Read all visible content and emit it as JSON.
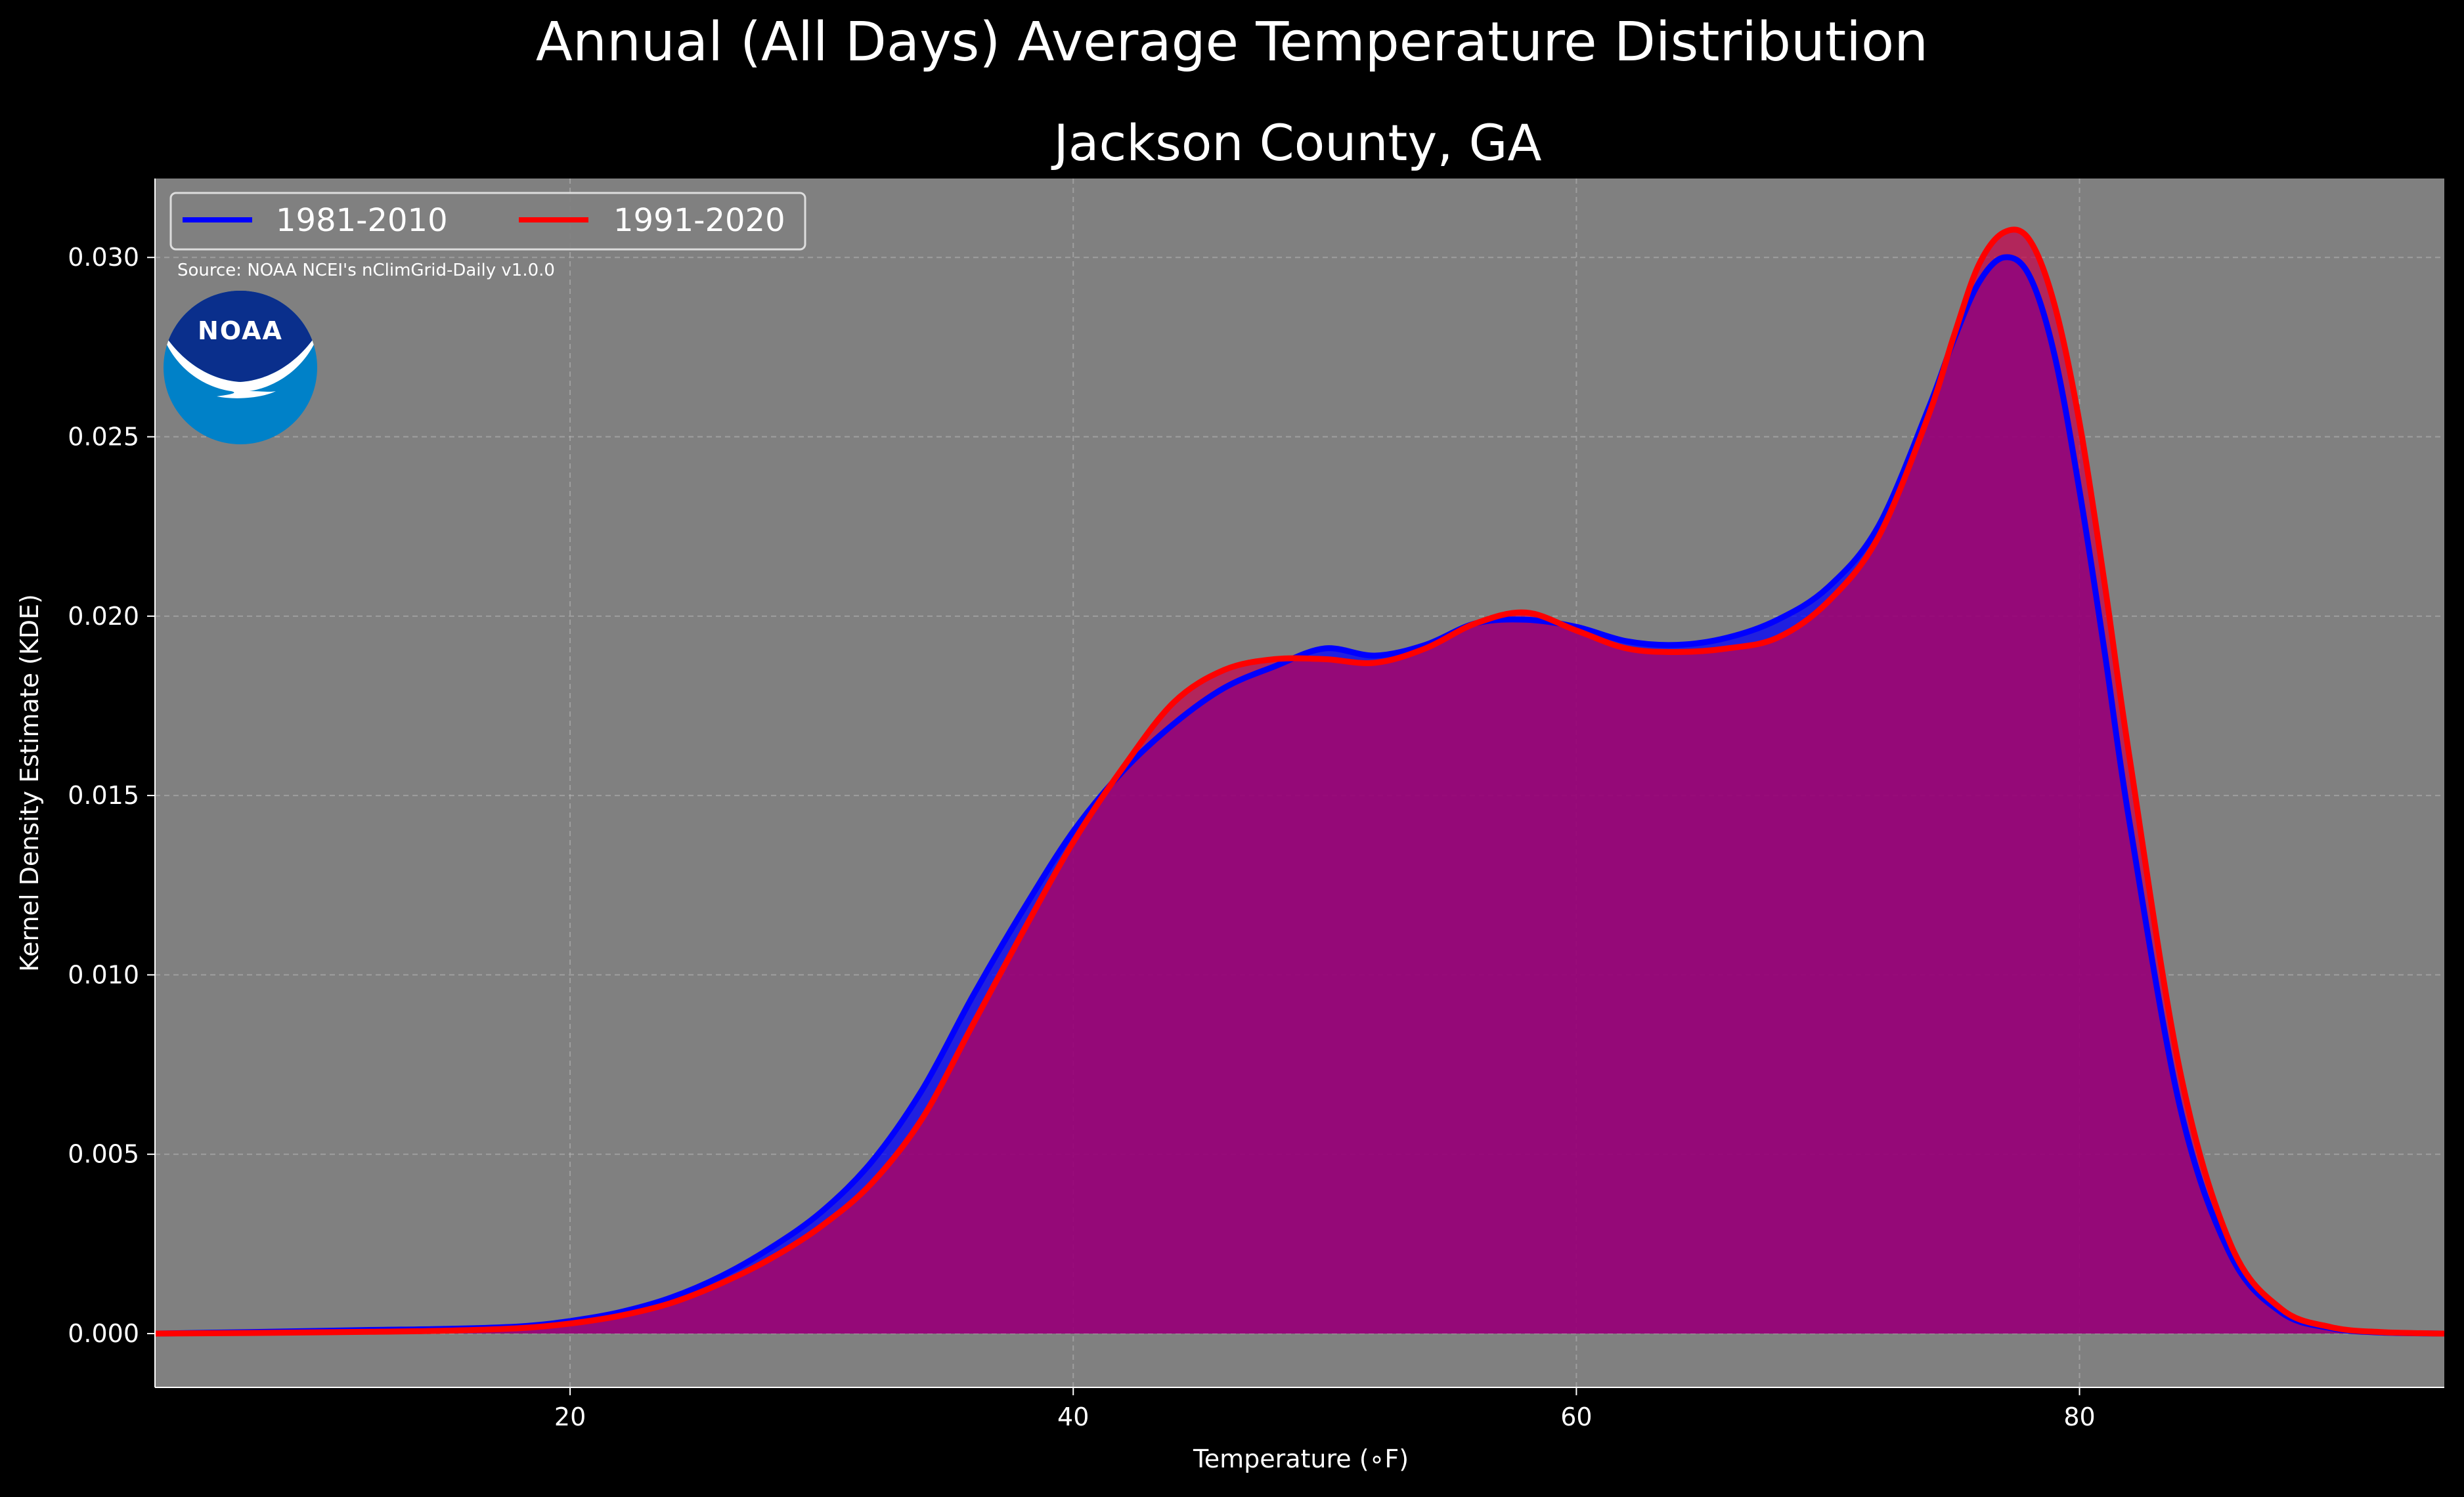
{
  "colors": {
    "background": "#000000",
    "plot_bg": "#808080",
    "series_1981": "#0000ff",
    "series_1991": "#ff0000",
    "fill_1981": "#0000ff",
    "fill_1991": "#c8004b",
    "noaa_dark": "#0a2f8c",
    "noaa_light": "#0081c8"
  },
  "source_note": "Source: NOAA NCEI's nClimGrid-Daily v1.0.0",
  "logo_text": "NOAA",
  "chart_data": {
    "type": "area",
    "title": "Annual (All Days) Average Temperature Distribution",
    "subtitle": "Jackson County, GA",
    "xlabel": "Temperature (∘F)",
    "ylabel": "Kernel Density Estimate (KDE)",
    "xlim": [
      3.5,
      94.5
    ],
    "ylim": [
      -0.0015,
      0.0322
    ],
    "xticks": [
      20,
      40,
      60,
      80
    ],
    "xtick_labels": [
      "20",
      "40",
      "60",
      "80"
    ],
    "yticks": [
      0.0,
      0.005,
      0.01,
      0.015,
      0.02,
      0.025,
      0.03
    ],
    "ytick_labels": [
      "0.000",
      "0.005",
      "0.010",
      "0.015",
      "0.020",
      "0.025",
      "0.030"
    ],
    "grid": true,
    "legend_position": "top-left",
    "series": [
      {
        "name": "1981-2010",
        "x": [
          3.5,
          8,
          12,
          15,
          18,
          20,
          22,
          24,
          26,
          28,
          30,
          32,
          34,
          36,
          38,
          40,
          42,
          44,
          46,
          48,
          50,
          52,
          54,
          56,
          58,
          60,
          62,
          64,
          66,
          68,
          70,
          72,
          74,
          75,
          76,
          77,
          78,
          79,
          80,
          81,
          82,
          84,
          86,
          88,
          90,
          92,
          94.5
        ],
        "y": [
          0.0,
          5e-05,
          0.0001,
          0.00013,
          0.0002,
          0.00035,
          0.0006,
          0.001,
          0.0016,
          0.0024,
          0.0034,
          0.0048,
          0.0068,
          0.0094,
          0.0118,
          0.014,
          0.0157,
          0.017,
          0.018,
          0.0186,
          0.0191,
          0.0189,
          0.0192,
          0.0198,
          0.0199,
          0.0197,
          0.0193,
          0.0192,
          0.0194,
          0.0199,
          0.0208,
          0.0225,
          0.0258,
          0.0277,
          0.0293,
          0.03,
          0.0295,
          0.0273,
          0.0235,
          0.019,
          0.0142,
          0.0063,
          0.0022,
          0.0006,
          0.00015,
          3e-05,
          0.0
        ]
      },
      {
        "name": "1991-2020",
        "x": [
          3.5,
          8,
          12,
          15,
          18,
          20,
          22,
          24,
          26,
          28,
          30,
          32,
          34,
          36,
          38,
          40,
          42,
          44,
          46,
          48,
          50,
          52,
          54,
          56,
          58,
          60,
          62,
          64,
          66,
          68,
          70,
          72,
          74,
          75,
          76,
          77,
          78,
          79,
          80,
          81,
          82,
          84,
          86,
          88,
          90,
          92,
          94.5
        ],
        "y": [
          0.0,
          2e-05,
          5e-05,
          8e-05,
          0.00015,
          0.00028,
          0.0005,
          0.00085,
          0.0014,
          0.0021,
          0.003,
          0.0042,
          0.006,
          0.0086,
          0.0112,
          0.0137,
          0.0158,
          0.0176,
          0.0185,
          0.0188,
          0.0188,
          0.0187,
          0.0191,
          0.0198,
          0.0201,
          0.0196,
          0.0191,
          0.019,
          0.0191,
          0.0194,
          0.0204,
          0.0222,
          0.0256,
          0.0278,
          0.0298,
          0.0307,
          0.0305,
          0.0287,
          0.0254,
          0.0209,
          0.016,
          0.0073,
          0.0025,
          0.0007,
          0.00018,
          4e-05,
          0.0
        ]
      }
    ]
  }
}
